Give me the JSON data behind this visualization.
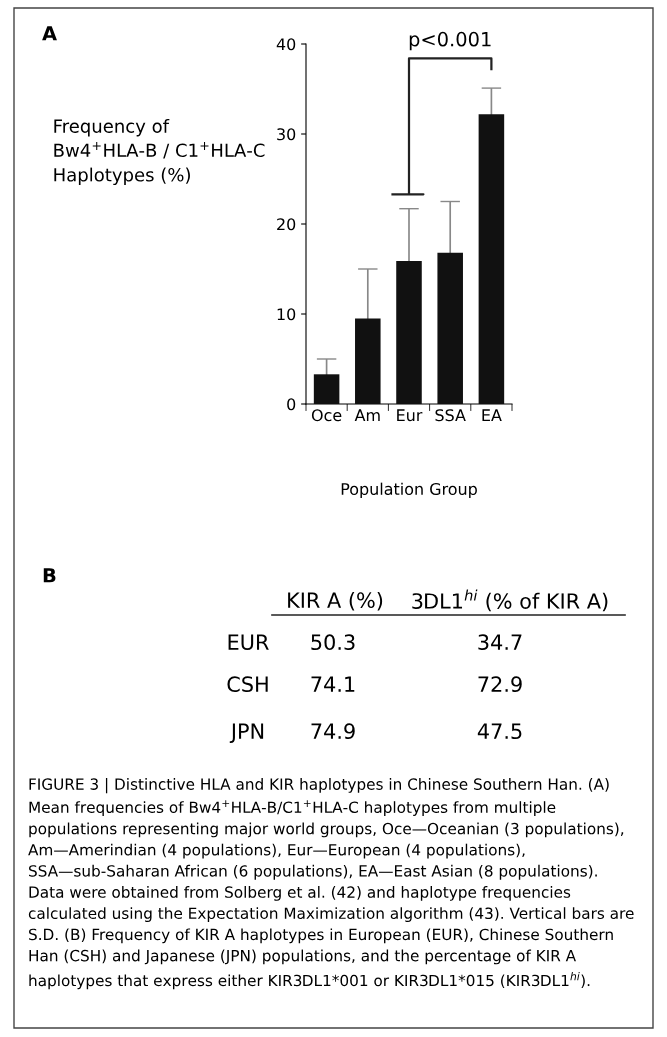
{
  "chart_data": [
    {
      "type": "bar",
      "categories": [
        "Oce",
        "Am",
        "Eur",
        "SSA",
        "EA"
      ],
      "values": [
        3.3,
        9.5,
        15.9,
        16.8,
        32.2
      ],
      "errors": [
        1.7,
        5.5,
        5.8,
        5.7,
        2.9
      ],
      "color": "#111111",
      "ylim": [
        0,
        40
      ],
      "yticks": [
        0,
        10,
        20,
        30,
        40
      ],
      "ylabel": "Frequency of\nBw4$^{+}$HLA-B / C1$^{+}$HLA-C\nHaplotypes (%)",
      "xlabel": "Population Group",
      "grid": false,
      "annotations": [
        "A",
        "p<0.001"
      ]
    },
    {
      "type": "other",
      "annotations": [
        "B",
        "KIR A (%)",
        "3DL1$^{hi}$ (% of KIR A)",
        "EUR",
        "50.3",
        "34.7",
        "CSH",
        "74.1",
        "72.9",
        "JPN",
        "74.9",
        "47.5",
        "FIGURE 3 | Distinctive HLA and KIR haplotypes in Chinese Southern Han. (A) Mean frequencies of Bw4$^{+}$HLA-B/C1$^{+}$HLA-C haplotypes from multiple populations representing major world groups, Oce—Oceanian (3 populations), Am—Amerindian (4 populations), Eur—European (4 populations), SSA—sub-Saharan African (6 populations), EA—East Asian (8 populations). Data were obtained from Solberg et al. (42) and haplotype frequencies calculated using the Expectation Maximization algorithm (43). Vertical bars are S.D. (B) Frequency of KIR A haplotypes in European (EUR), Chinese Southern Han (CSH) and Japanese (JPN) populations, and the percentage of KIR A haplotypes that express either KIR3DL1*001 or KIR3DL1*015 (KIR3DL1$^{hi}$)."
      ]
    }
  ]
}
